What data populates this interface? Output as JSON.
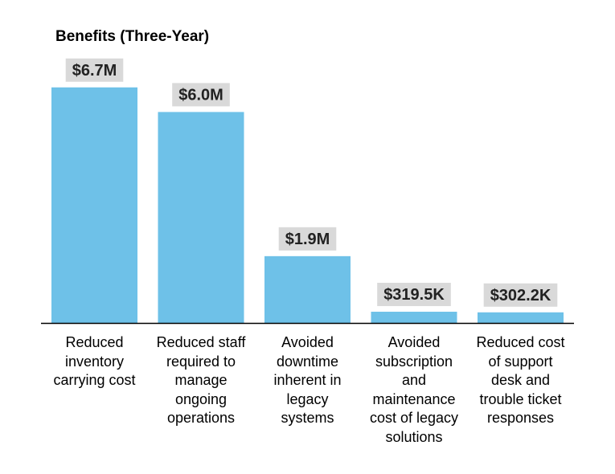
{
  "colors": {
    "bar": "#6EC1E8",
    "data_label_bg": "#D9D9D9",
    "axis": "#000000"
  },
  "chart_data": {
    "type": "bar",
    "title": "Benefits (Three-Year)",
    "xlabel": "",
    "ylabel": "",
    "categories": [
      "Reduced inventory carrying cost",
      "Reduced staff required to manage ongoing operations",
      "Avoided downtime inherent in legacy systems",
      "Avoided subscription and maintenance cost of legacy solutions",
      "Reduced cost of support desk and trouble ticket responses"
    ],
    "category_lines": [
      [
        "Reduced",
        "inventory",
        "carrying cost"
      ],
      [
        "Reduced staff",
        "required to",
        "manage",
        "ongoing",
        "operations"
      ],
      [
        "Avoided",
        "downtime",
        "inherent in",
        "legacy",
        "systems"
      ],
      [
        "Avoided",
        "subscription",
        "and",
        "maintenance",
        "cost of legacy",
        "solutions"
      ],
      [
        "Reduced cost",
        "of support",
        "desk and",
        "trouble ticket",
        "responses"
      ]
    ],
    "values": [
      6.7,
      6.0,
      1.9,
      0.3195,
      0.3022
    ],
    "value_unit": "$M",
    "data_labels": [
      "$6.7M",
      "$6.0M",
      "$1.9M",
      "$319.5K",
      "$302.2K"
    ],
    "ylim": [
      0,
      7.7
    ],
    "grid": false,
    "legend": "none",
    "y_axis_visible": false
  }
}
